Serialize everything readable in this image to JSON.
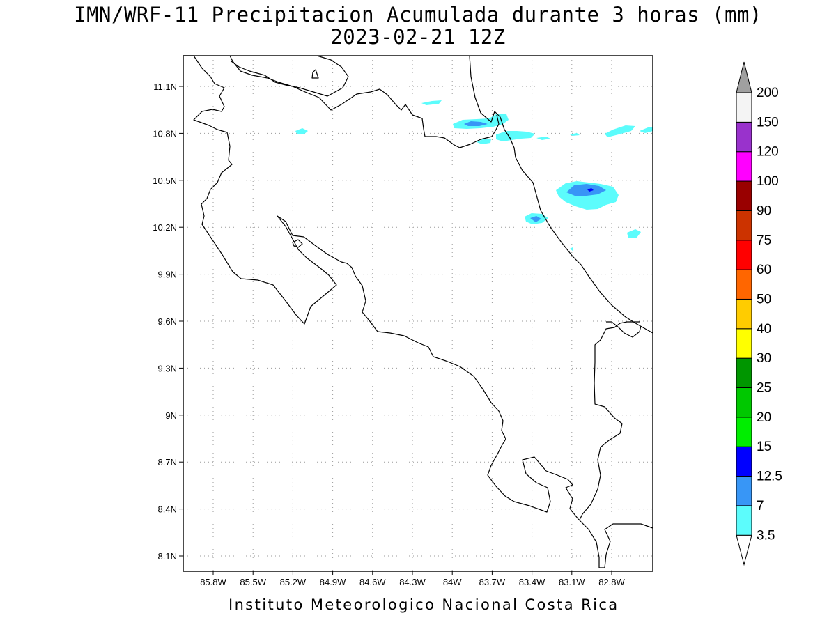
{
  "title": {
    "line1": "IMN/WRF-11 Precipitacion Acumulada durante 3 horas (mm)",
    "line2": "2023-02-21 12Z"
  },
  "footer": "Instituto Meteorologico Nacional Costa Rica",
  "map": {
    "lat_labels": [
      "11.1N",
      "10.8N",
      "10.5N",
      "10.2N",
      "9.9N",
      "9.6N",
      "9.3N",
      "9N",
      "8.7N",
      "8.4N",
      "8.1N"
    ],
    "lon_labels": [
      "85.8W",
      "85.5W",
      "85.2W",
      "84.9W",
      "84.6W",
      "84.3W",
      "84W",
      "83.7W",
      "83.4W",
      "83.1W",
      "82.8W"
    ],
    "grid": true,
    "coastline_color": "#000000"
  },
  "legend": {
    "labels": [
      "200",
      "150",
      "120",
      "100",
      "90",
      "75",
      "60",
      "50",
      "40",
      "30",
      "25",
      "20",
      "15",
      "12.5",
      "7",
      "3.5"
    ],
    "colors_bottom_to_top": [
      "#5cfcfc",
      "#3896f6",
      "#0000ff",
      "#00ee00",
      "#00c800",
      "#009600",
      "#ffff00",
      "#ffcc00",
      "#ff6600",
      "#ff0000",
      "#cc3300",
      "#990000",
      "#ff00ff",
      "#9932cc",
      "#f4f4f4"
    ],
    "top_arrow_color": "#a0a0a0",
    "bottom_arrow_color": "#ffffff"
  },
  "precip_levels_present": [
    "3.5",
    "7"
  ]
}
